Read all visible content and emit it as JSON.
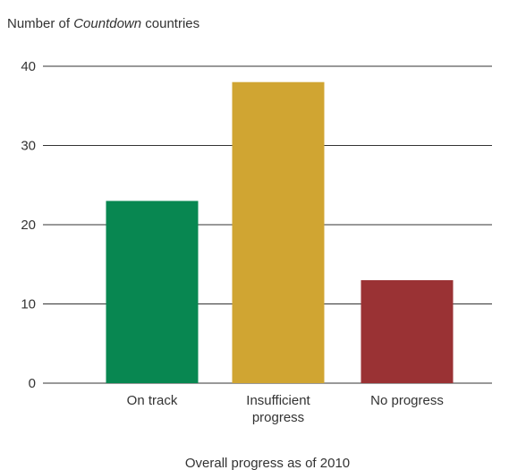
{
  "chart_data": {
    "type": "bar",
    "title": "",
    "ylabel": {
      "prefix": "Number of ",
      "emphasis": "Countdown",
      "suffix": " countries"
    },
    "xlabel": "Overall progress as of 2010",
    "categories": [
      [
        "On track"
      ],
      [
        "Insufficient",
        "progress"
      ],
      [
        "No progress"
      ]
    ],
    "values": [
      23,
      38,
      13
    ],
    "colors": [
      "#088751",
      "#d0a532",
      "#9a3234"
    ],
    "ylim": [
      0,
      40
    ],
    "yticks": [
      0,
      10,
      20,
      30,
      40
    ],
    "grid": true,
    "legend": "none"
  }
}
